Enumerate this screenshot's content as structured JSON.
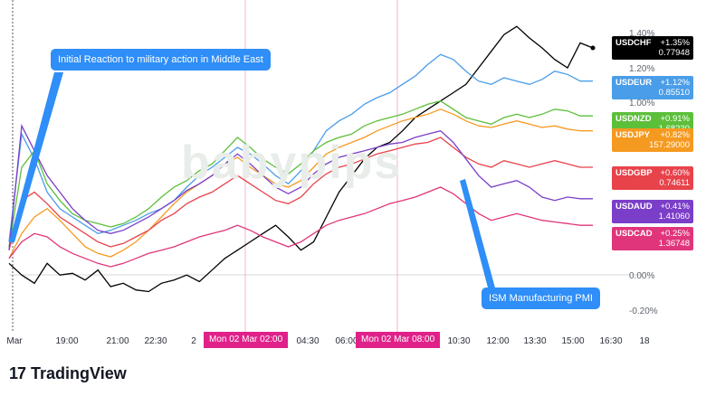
{
  "chart_data": {
    "type": "line",
    "y_unit": "%",
    "ylim": [
      -0.3,
      1.5
    ],
    "y_ticks": [
      "1.40%",
      "1.20%",
      "1.00%",
      "0.00%",
      "-0.20%"
    ],
    "x_ticks": [
      "Mar",
      "19:00",
      "21:00",
      "22:30",
      "2",
      "Mon 02 Mar  02:00",
      "04:30",
      "06:00",
      "Mon 02 Mar  08:00",
      "10:30",
      "12:00",
      "13:30",
      "15:00",
      "16:30",
      "18"
    ],
    "series": [
      {
        "name": "USDCHF",
        "color": "#000000",
        "last_pct": "+1.35%",
        "last_price": "0.77948",
        "values": [
          0.02,
          -0.05,
          -0.1,
          0.02,
          -0.05,
          -0.04,
          -0.08,
          -0.02,
          -0.12,
          -0.1,
          -0.14,
          -0.15,
          -0.1,
          -0.08,
          -0.05,
          -0.09,
          -0.02,
          0.05,
          0.1,
          0.15,
          0.2,
          0.25,
          0.18,
          0.1,
          0.15,
          0.3,
          0.45,
          0.55,
          0.65,
          0.72,
          0.75,
          0.82,
          0.9,
          0.95,
          1.0,
          1.05,
          1.1,
          1.2,
          1.3,
          1.4,
          1.45,
          1.38,
          1.32,
          1.25,
          1.2,
          1.35,
          1.32
        ]
      },
      {
        "name": "USDEUR",
        "color": "#4a9de8",
        "last_pct": "+1.12%",
        "last_price": "0.85510",
        "values": [
          0.15,
          0.8,
          0.65,
          0.45,
          0.35,
          0.3,
          0.25,
          0.2,
          0.22,
          0.25,
          0.28,
          0.32,
          0.35,
          0.4,
          0.48,
          0.55,
          0.6,
          0.66,
          0.72,
          0.68,
          0.62,
          0.55,
          0.5,
          0.58,
          0.7,
          0.82,
          0.88,
          0.92,
          0.98,
          1.02,
          1.05,
          1.1,
          1.15,
          1.22,
          1.28,
          1.25,
          1.18,
          1.12,
          1.1,
          1.14,
          1.12,
          1.1,
          1.13,
          1.18,
          1.16,
          1.12,
          1.12
        ]
      },
      {
        "name": "USDNZD",
        "color": "#5cbf3a",
        "last_pct": "+0.91%",
        "last_price": "1.68230",
        "values": [
          0.12,
          0.6,
          0.7,
          0.5,
          0.4,
          0.32,
          0.28,
          0.26,
          0.24,
          0.26,
          0.3,
          0.35,
          0.42,
          0.48,
          0.52,
          0.58,
          0.62,
          0.7,
          0.78,
          0.72,
          0.65,
          0.6,
          0.56,
          0.62,
          0.7,
          0.75,
          0.78,
          0.8,
          0.85,
          0.88,
          0.9,
          0.92,
          0.95,
          0.98,
          1.0,
          0.95,
          0.9,
          0.88,
          0.86,
          0.9,
          0.92,
          0.9,
          0.92,
          0.95,
          0.94,
          0.91,
          0.91
        ]
      },
      {
        "name": "USDJPY",
        "color": "#f59a20",
        "last_pct": "+0.82%",
        "last_price": "157.29000",
        "values": [
          0.05,
          0.2,
          0.3,
          0.35,
          0.28,
          0.2,
          0.12,
          0.08,
          0.06,
          0.1,
          0.15,
          0.22,
          0.3,
          0.38,
          0.45,
          0.5,
          0.55,
          0.62,
          0.66,
          0.6,
          0.55,
          0.5,
          0.48,
          0.52,
          0.6,
          0.68,
          0.72,
          0.75,
          0.78,
          0.82,
          0.85,
          0.88,
          0.9,
          0.92,
          0.95,
          0.92,
          0.88,
          0.85,
          0.84,
          0.86,
          0.88,
          0.86,
          0.84,
          0.85,
          0.83,
          0.82,
          0.82
        ]
      },
      {
        "name": "USDGBP",
        "color": "#e8424b",
        "last_pct": "+0.60%",
        "last_price": "0.74611",
        "values": [
          0.1,
          0.4,
          0.45,
          0.38,
          0.3,
          0.25,
          0.2,
          0.15,
          0.12,
          0.14,
          0.18,
          0.22,
          0.28,
          0.32,
          0.38,
          0.42,
          0.45,
          0.5,
          0.55,
          0.5,
          0.45,
          0.4,
          0.38,
          0.42,
          0.5,
          0.56,
          0.6,
          0.62,
          0.65,
          0.68,
          0.7,
          0.72,
          0.74,
          0.75,
          0.78,
          0.72,
          0.66,
          0.62,
          0.6,
          0.64,
          0.62,
          0.6,
          0.62,
          0.64,
          0.62,
          0.6,
          0.6
        ]
      },
      {
        "name": "USDAUD",
        "color": "#7b3ec9",
        "last_pct": "+0.41%",
        "last_price": "1.41060",
        "values": [
          0.1,
          0.85,
          0.7,
          0.55,
          0.45,
          0.35,
          0.28,
          0.22,
          0.2,
          0.22,
          0.26,
          0.3,
          0.35,
          0.4,
          0.46,
          0.5,
          0.55,
          0.62,
          0.68,
          0.62,
          0.55,
          0.48,
          0.44,
          0.48,
          0.56,
          0.62,
          0.66,
          0.68,
          0.7,
          0.72,
          0.74,
          0.75,
          0.78,
          0.8,
          0.82,
          0.75,
          0.65,
          0.55,
          0.48,
          0.5,
          0.52,
          0.48,
          0.42,
          0.4,
          0.42,
          0.41,
          0.41
        ]
      },
      {
        "name": "USDCAD",
        "color": "#e0357a",
        "last_pct": "+0.25%",
        "last_price": "1.36748",
        "values": [
          0.05,
          0.15,
          0.2,
          0.18,
          0.12,
          0.08,
          0.05,
          0.02,
          0.0,
          0.02,
          0.05,
          0.08,
          0.1,
          0.12,
          0.15,
          0.18,
          0.2,
          0.22,
          0.25,
          0.22,
          0.18,
          0.15,
          0.12,
          0.15,
          0.2,
          0.25,
          0.28,
          0.3,
          0.32,
          0.35,
          0.38,
          0.4,
          0.42,
          0.45,
          0.48,
          0.44,
          0.38,
          0.32,
          0.28,
          0.3,
          0.32,
          0.3,
          0.28,
          0.27,
          0.26,
          0.25,
          0.25
        ]
      }
    ],
    "annotations": [
      "Initial Reaction to military action in Middle East",
      "ISM Manufacturing PMI"
    ],
    "watermark": "babypips",
    "grid": false
  },
  "brand": {
    "logo": "17",
    "name": "TradingView"
  }
}
